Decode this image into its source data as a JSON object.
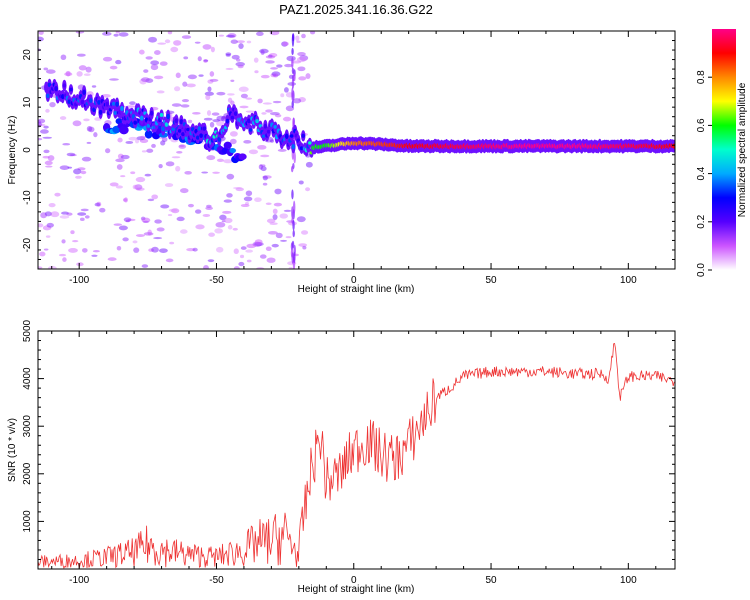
{
  "chart_data": [
    {
      "type": "heatmap",
      "title": "PAZ1.2025.341.16.36.G22",
      "xlabel": "Height of straight line (km)",
      "ylabel": "Frequency (Hz)",
      "xlim": [
        -115,
        117
      ],
      "ylim": [
        -25,
        25
      ],
      "x_ticks": [
        "-100",
        "-50",
        "0",
        "50",
        "100"
      ],
      "y_ticks": [
        "-20",
        "-10",
        "0",
        "10",
        "20"
      ],
      "colorbar": {
        "label": "Normalized spectral amplitude",
        "range": [
          0,
          1
        ],
        "ticks": [
          "0.0",
          "0.2",
          "0.4",
          "0.6",
          "0.8"
        ],
        "colors": [
          "#ffffff",
          "#cc55ff",
          "#5500ff",
          "#0000ff",
          "#00aaff",
          "#00ffcc",
          "#00ff00",
          "#ffff00",
          "#ff8800",
          "#ff0000",
          "#ff0088"
        ]
      },
      "ridge": {
        "x": [
          -112,
          -100,
          -90,
          -80,
          -70,
          -60,
          -50,
          -45,
          -40,
          -30,
          -20,
          -15,
          -10,
          0,
          10,
          20,
          40,
          60,
          80,
          100,
          117
        ],
        "freq_hz": [
          13,
          11,
          9,
          7,
          6,
          4,
          2,
          8,
          6,
          4,
          2,
          0.5,
          0.8,
          1.5,
          1.2,
          0.8,
          0.8,
          0.8,
          0.8,
          0.8,
          0.8
        ],
        "amplitude": [
          0.3,
          0.35,
          0.3,
          0.35,
          0.4,
          0.3,
          0.45,
          0.3,
          0.4,
          0.35,
          0.3,
          0.6,
          0.6,
          0.8,
          0.85,
          0.9,
          0.95,
          1.0,
          1.0,
          0.95,
          0.9
        ]
      },
      "secondary_ridge": {
        "x": [
          -90,
          -80,
          -70,
          -60,
          -50,
          -40
        ],
        "freq_hz": [
          5,
          5,
          4,
          3,
          1,
          -2
        ]
      }
    },
    {
      "type": "line",
      "title": "",
      "xlabel": "Height of straight line (km)",
      "ylabel": "SNR (10 * v/v)",
      "xlim": [
        -115,
        117
      ],
      "ylim": [
        0,
        5000
      ],
      "x_ticks": [
        "-100",
        "-50",
        "0",
        "50",
        "100"
      ],
      "y_ticks": [
        "1000",
        "2000",
        "3000",
        "4000",
        "5000"
      ],
      "series": [
        {
          "name": "SNR",
          "color": "#ee3333",
          "x": [
            -115,
            -100,
            -90,
            -80,
            -75,
            -70,
            -60,
            -50,
            -40,
            -35,
            -30,
            -25,
            -22,
            -20,
            -18,
            -15,
            -12,
            -10,
            -5,
            0,
            5,
            10,
            15,
            20,
            25,
            30,
            35,
            40,
            50,
            60,
            70,
            80,
            90,
            93,
            95,
            97,
            100,
            110,
            117
          ],
          "y": [
            150,
            180,
            250,
            350,
            500,
            400,
            300,
            250,
            400,
            550,
            600,
            700,
            500,
            200,
            1200,
            2200,
            2800,
            1800,
            2000,
            2500,
            2700,
            2400,
            2300,
            2600,
            3100,
            3600,
            3800,
            4050,
            4150,
            4150,
            4150,
            4100,
            4100,
            4000,
            4800,
            3600,
            4050,
            4050,
            3950
          ]
        }
      ]
    }
  ]
}
